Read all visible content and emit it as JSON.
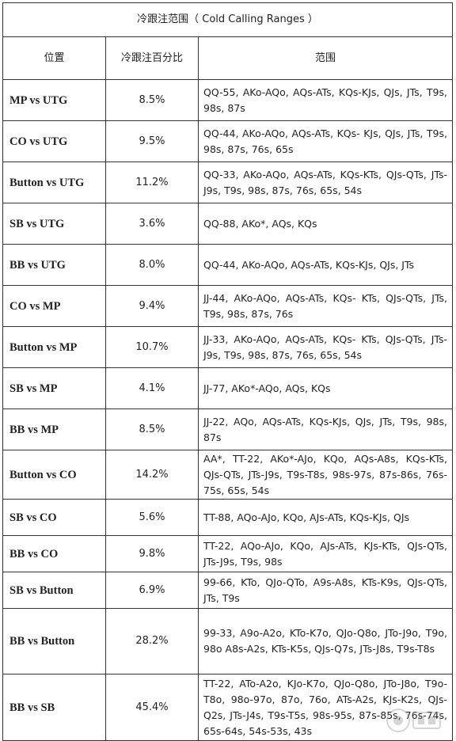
{
  "table": {
    "title": "冷跟注范围（ Cold Calling Ranges ）",
    "headers": [
      "位置",
      "冷跟注百分比",
      "范围"
    ],
    "rows": [
      {
        "position": "MP vs UTG",
        "percent": "8.5%",
        "range": "QQ-55, AKo-AQo, AQs-ATs, KQs-KJs, QJs, JTs, T9s, 98s, 87s"
      },
      {
        "position": "CO vs UTG",
        "percent": "9.5%",
        "range": "QQ-44, AKo-AQo, AQs-ATs, KQs- KJs, QJs, JTs, T9s, 98s, 87s, 76s, 65s"
      },
      {
        "position": "Button vs UTG",
        "percent": "11.2%",
        "range": "QQ-33, AKo-AQo, AQs-ATs, KQs-KTs, QJs-QTs, JTs-J9s, T9s, 98s, 87s, 76s, 65s, 54s"
      },
      {
        "position": "SB vs UTG",
        "percent": "3.6%",
        "range": "QQ-88, AKo*, AQs, KQs"
      },
      {
        "position": "BB vs UTG",
        "percent": "8.0%",
        "range": "QQ-44, AKo-AQo, AQs-ATs, KQs-KJs, QJs, JTs"
      },
      {
        "position": "CO vs MP",
        "percent": "9.4%",
        "range": "JJ-44, AKo-AQo, AQs-ATs, KQs- KTs, QJs-QTs, JTs, T9s, 98s, 87s, 76s"
      },
      {
        "position": "Button vs MP",
        "percent": "10.7%",
        "range": "JJ-33, AKo-AQo, AQs-ATs, KQs- KTs, QJs-QTs, JTs-J9s, T9s, 98s, 87s, 76s, 65s, 54s"
      },
      {
        "position": "SB vs MP",
        "percent": "4.1%",
        "range": "JJ-77, AKo*-AQo, AQs, KQs"
      },
      {
        "position": "BB vs MP",
        "percent": "8.5%",
        "range": "JJ-22, AQo, AQs-ATs, KQs-KJs, QJs, JTs, T9s, 98s, 87s"
      },
      {
        "position": "Button vs CO",
        "percent": "14.2%",
        "range": "AA*, TT-22, AKo*-AJo, KQo, AQs-A8s, KQs-KTs, QJs-QTs, JTs-J9s, T9s-T8s, 98s-97s, 87s-86s, 76s-75s, 65s, 54s"
      },
      {
        "position": "SB vs CO",
        "percent": "5.6%",
        "range": "TT-88, AQo-AJo, KQo, AJs-ATs, KQs-KJs, QJs"
      },
      {
        "position": "BB vs CO",
        "percent": "9.8%",
        "range": "TT-22, AQo-AJo, KQo, AJs-ATs, KJs-KTs, QJs-QTs, JTs-J9s, T9s, 98s"
      },
      {
        "position": "SB vs Button",
        "percent": "6.9%",
        "range": "99-66, KTo, QJo-QTo, A9s-A8s, KTs-K9s, QJs-QTs, JTs, T9s"
      },
      {
        "position": "BB vs Button",
        "percent": "28.2%",
        "range": "99-33, A9o-A2o, KTo-K7o, QJo-Q8o, JTo-J9o, T9o, 98o A8s-A2s, KTs-K5s, QJs-Q7s, JTs-J8s, T9s-T8s"
      },
      {
        "position": "BB vs SB",
        "percent": "45.4%",
        "range": "TT-22, ATo-A2o, KJo-K7o, QJo-Q8o, JTo-J8o, T9o-T8o, 98o-97o, 87o, 76o, ATs-A2s, KJs-K2s, QJs-Q2s, JTs-J4s, T9s-T5s, 98s-95s, 87s-85s, 76s-74s, 65s-64s, 54s-53s, 43s"
      }
    ]
  }
}
